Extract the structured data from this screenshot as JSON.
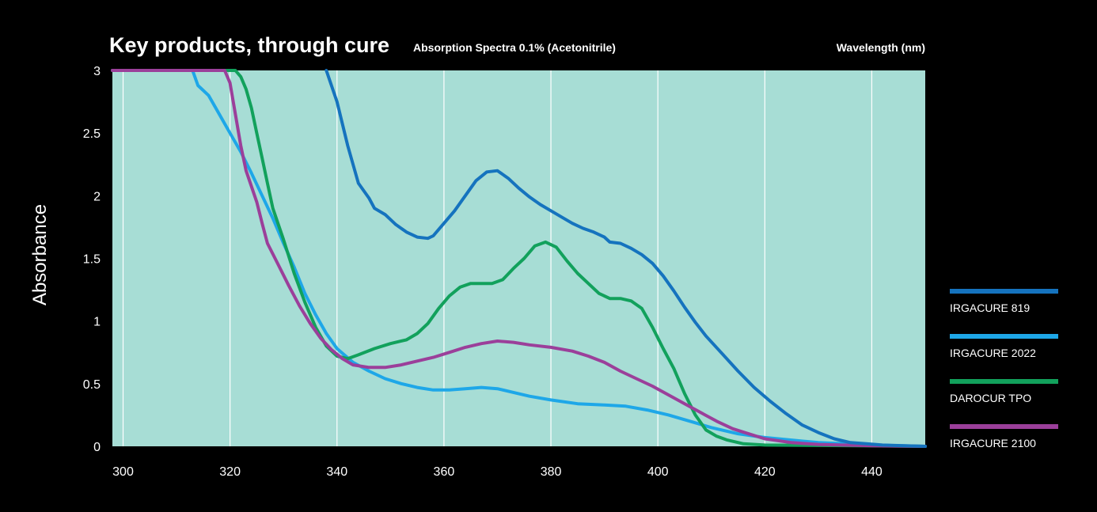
{
  "chart_data": {
    "type": "line",
    "title": "Key products, through cure",
    "subtitle": "Absorption Spectra 0.1% (Acetonitrile)",
    "xlabel": "Wavelength (nm)",
    "ylabel": "Absorbance",
    "xlim": [
      298,
      450
    ],
    "ylim": [
      0,
      3
    ],
    "xticks": [
      300,
      320,
      340,
      360,
      380,
      400,
      420,
      440
    ],
    "yticks": [
      0,
      0.5,
      1,
      1.5,
      2,
      2.5,
      3
    ],
    "ytick_labels": [
      "0",
      "0.5",
      "1",
      "1.5",
      "2",
      "2.5",
      "3"
    ],
    "grid": "vertical",
    "plot_background": "#a7ddd5",
    "legend_position": "right",
    "series": [
      {
        "name": "IRGACURE 819",
        "color": "#1573be",
        "points": [
          [
            338,
            3.0
          ],
          [
            340,
            2.75
          ],
          [
            342,
            2.4
          ],
          [
            344,
            2.1
          ],
          [
            346,
            1.98
          ],
          [
            347,
            1.9
          ],
          [
            349,
            1.85
          ],
          [
            351,
            1.77
          ],
          [
            353,
            1.71
          ],
          [
            355,
            1.67
          ],
          [
            357,
            1.66
          ],
          [
            358,
            1.68
          ],
          [
            360,
            1.78
          ],
          [
            362,
            1.88
          ],
          [
            364,
            2.0
          ],
          [
            366,
            2.12
          ],
          [
            368,
            2.19
          ],
          [
            370,
            2.2
          ],
          [
            372,
            2.14
          ],
          [
            374,
            2.06
          ],
          [
            376,
            1.99
          ],
          [
            378,
            1.93
          ],
          [
            380,
            1.88
          ],
          [
            382,
            1.83
          ],
          [
            384,
            1.78
          ],
          [
            386,
            1.74
          ],
          [
            388,
            1.71
          ],
          [
            390,
            1.67
          ],
          [
            391,
            1.63
          ],
          [
            393,
            1.62
          ],
          [
            395,
            1.58
          ],
          [
            397,
            1.53
          ],
          [
            399,
            1.46
          ],
          [
            401,
            1.36
          ],
          [
            403,
            1.24
          ],
          [
            405,
            1.11
          ],
          [
            407,
            0.99
          ],
          [
            409,
            0.88
          ],
          [
            412,
            0.74
          ],
          [
            415,
            0.6
          ],
          [
            418,
            0.47
          ],
          [
            421,
            0.36
          ],
          [
            424,
            0.26
          ],
          [
            427,
            0.17
          ],
          [
            430,
            0.11
          ],
          [
            433,
            0.06
          ],
          [
            436,
            0.03
          ],
          [
            439,
            0.02
          ],
          [
            442,
            0.01
          ],
          [
            446,
            0.005
          ],
          [
            450,
            0.0
          ]
        ]
      },
      {
        "name": "IRGACURE 2022",
        "color": "#1ea7e8",
        "points": [
          [
            298,
            3.0
          ],
          [
            313,
            3.0
          ],
          [
            314,
            2.88
          ],
          [
            316,
            2.8
          ],
          [
            318,
            2.65
          ],
          [
            320,
            2.5
          ],
          [
            322,
            2.35
          ],
          [
            324,
            2.18
          ],
          [
            326,
            2.0
          ],
          [
            328,
            1.82
          ],
          [
            330,
            1.62
          ],
          [
            332,
            1.43
          ],
          [
            334,
            1.22
          ],
          [
            336,
            1.05
          ],
          [
            338,
            0.9
          ],
          [
            340,
            0.78
          ],
          [
            343,
            0.67
          ],
          [
            346,
            0.6
          ],
          [
            349,
            0.54
          ],
          [
            352,
            0.5
          ],
          [
            355,
            0.47
          ],
          [
            358,
            0.45
          ],
          [
            361,
            0.45
          ],
          [
            364,
            0.46
          ],
          [
            367,
            0.47
          ],
          [
            370,
            0.46
          ],
          [
            373,
            0.43
          ],
          [
            376,
            0.4
          ],
          [
            380,
            0.37
          ],
          [
            385,
            0.34
          ],
          [
            390,
            0.33
          ],
          [
            394,
            0.32
          ],
          [
            398,
            0.29
          ],
          [
            402,
            0.25
          ],
          [
            406,
            0.2
          ],
          [
            410,
            0.15
          ],
          [
            415,
            0.1
          ],
          [
            420,
            0.07
          ],
          [
            425,
            0.05
          ],
          [
            430,
            0.03
          ],
          [
            435,
            0.02
          ],
          [
            440,
            0.01
          ],
          [
            450,
            0.0
          ]
        ]
      },
      {
        "name": "DAROCUR TPO",
        "color": "#12a15c",
        "points": [
          [
            298,
            3.0
          ],
          [
            321,
            3.0
          ],
          [
            322,
            2.95
          ],
          [
            323,
            2.85
          ],
          [
            324,
            2.7
          ],
          [
            325,
            2.5
          ],
          [
            326,
            2.3
          ],
          [
            327,
            2.1
          ],
          [
            328,
            1.9
          ],
          [
            330,
            1.65
          ],
          [
            332,
            1.38
          ],
          [
            334,
            1.15
          ],
          [
            336,
            0.95
          ],
          [
            338,
            0.8
          ],
          [
            340,
            0.72
          ],
          [
            342,
            0.7
          ],
          [
            344,
            0.73
          ],
          [
            347,
            0.78
          ],
          [
            350,
            0.82
          ],
          [
            353,
            0.85
          ],
          [
            355,
            0.9
          ],
          [
            357,
            0.98
          ],
          [
            359,
            1.1
          ],
          [
            361,
            1.2
          ],
          [
            363,
            1.27
          ],
          [
            365,
            1.3
          ],
          [
            367,
            1.3
          ],
          [
            369,
            1.3
          ],
          [
            371,
            1.33
          ],
          [
            373,
            1.42
          ],
          [
            375,
            1.5
          ],
          [
            377,
            1.6
          ],
          [
            379,
            1.63
          ],
          [
            381,
            1.59
          ],
          [
            383,
            1.48
          ],
          [
            385,
            1.38
          ],
          [
            387,
            1.3
          ],
          [
            389,
            1.22
          ],
          [
            391,
            1.18
          ],
          [
            393,
            1.18
          ],
          [
            395,
            1.16
          ],
          [
            397,
            1.1
          ],
          [
            399,
            0.95
          ],
          [
            401,
            0.78
          ],
          [
            403,
            0.62
          ],
          [
            405,
            0.42
          ],
          [
            407,
            0.25
          ],
          [
            409,
            0.13
          ],
          [
            411,
            0.08
          ],
          [
            413,
            0.05
          ],
          [
            416,
            0.02
          ],
          [
            420,
            0.01
          ],
          [
            450,
            0.0
          ]
        ]
      },
      {
        "name": "IRGACURE 2100",
        "color": "#9b3f9a",
        "points": [
          [
            298,
            3.0
          ],
          [
            319,
            3.0
          ],
          [
            320,
            2.9
          ],
          [
            321,
            2.65
          ],
          [
            322,
            2.4
          ],
          [
            323,
            2.2
          ],
          [
            325,
            1.95
          ],
          [
            326,
            1.78
          ],
          [
            327,
            1.62
          ],
          [
            329,
            1.45
          ],
          [
            331,
            1.28
          ],
          [
            333,
            1.12
          ],
          [
            335,
            0.98
          ],
          [
            337,
            0.86
          ],
          [
            339,
            0.77
          ],
          [
            341,
            0.7
          ],
          [
            343,
            0.65
          ],
          [
            346,
            0.63
          ],
          [
            349,
            0.63
          ],
          [
            352,
            0.65
          ],
          [
            355,
            0.68
          ],
          [
            358,
            0.71
          ],
          [
            361,
            0.75
          ],
          [
            364,
            0.79
          ],
          [
            367,
            0.82
          ],
          [
            370,
            0.84
          ],
          [
            373,
            0.83
          ],
          [
            376,
            0.81
          ],
          [
            380,
            0.79
          ],
          [
            384,
            0.76
          ],
          [
            387,
            0.72
          ],
          [
            390,
            0.67
          ],
          [
            393,
            0.6
          ],
          [
            396,
            0.54
          ],
          [
            399,
            0.48
          ],
          [
            402,
            0.41
          ],
          [
            405,
            0.34
          ],
          [
            408,
            0.27
          ],
          [
            411,
            0.2
          ],
          [
            414,
            0.14
          ],
          [
            417,
            0.1
          ],
          [
            420,
            0.06
          ],
          [
            425,
            0.03
          ],
          [
            430,
            0.015
          ],
          [
            440,
            0.005
          ],
          [
            450,
            0.0
          ]
        ]
      }
    ]
  }
}
